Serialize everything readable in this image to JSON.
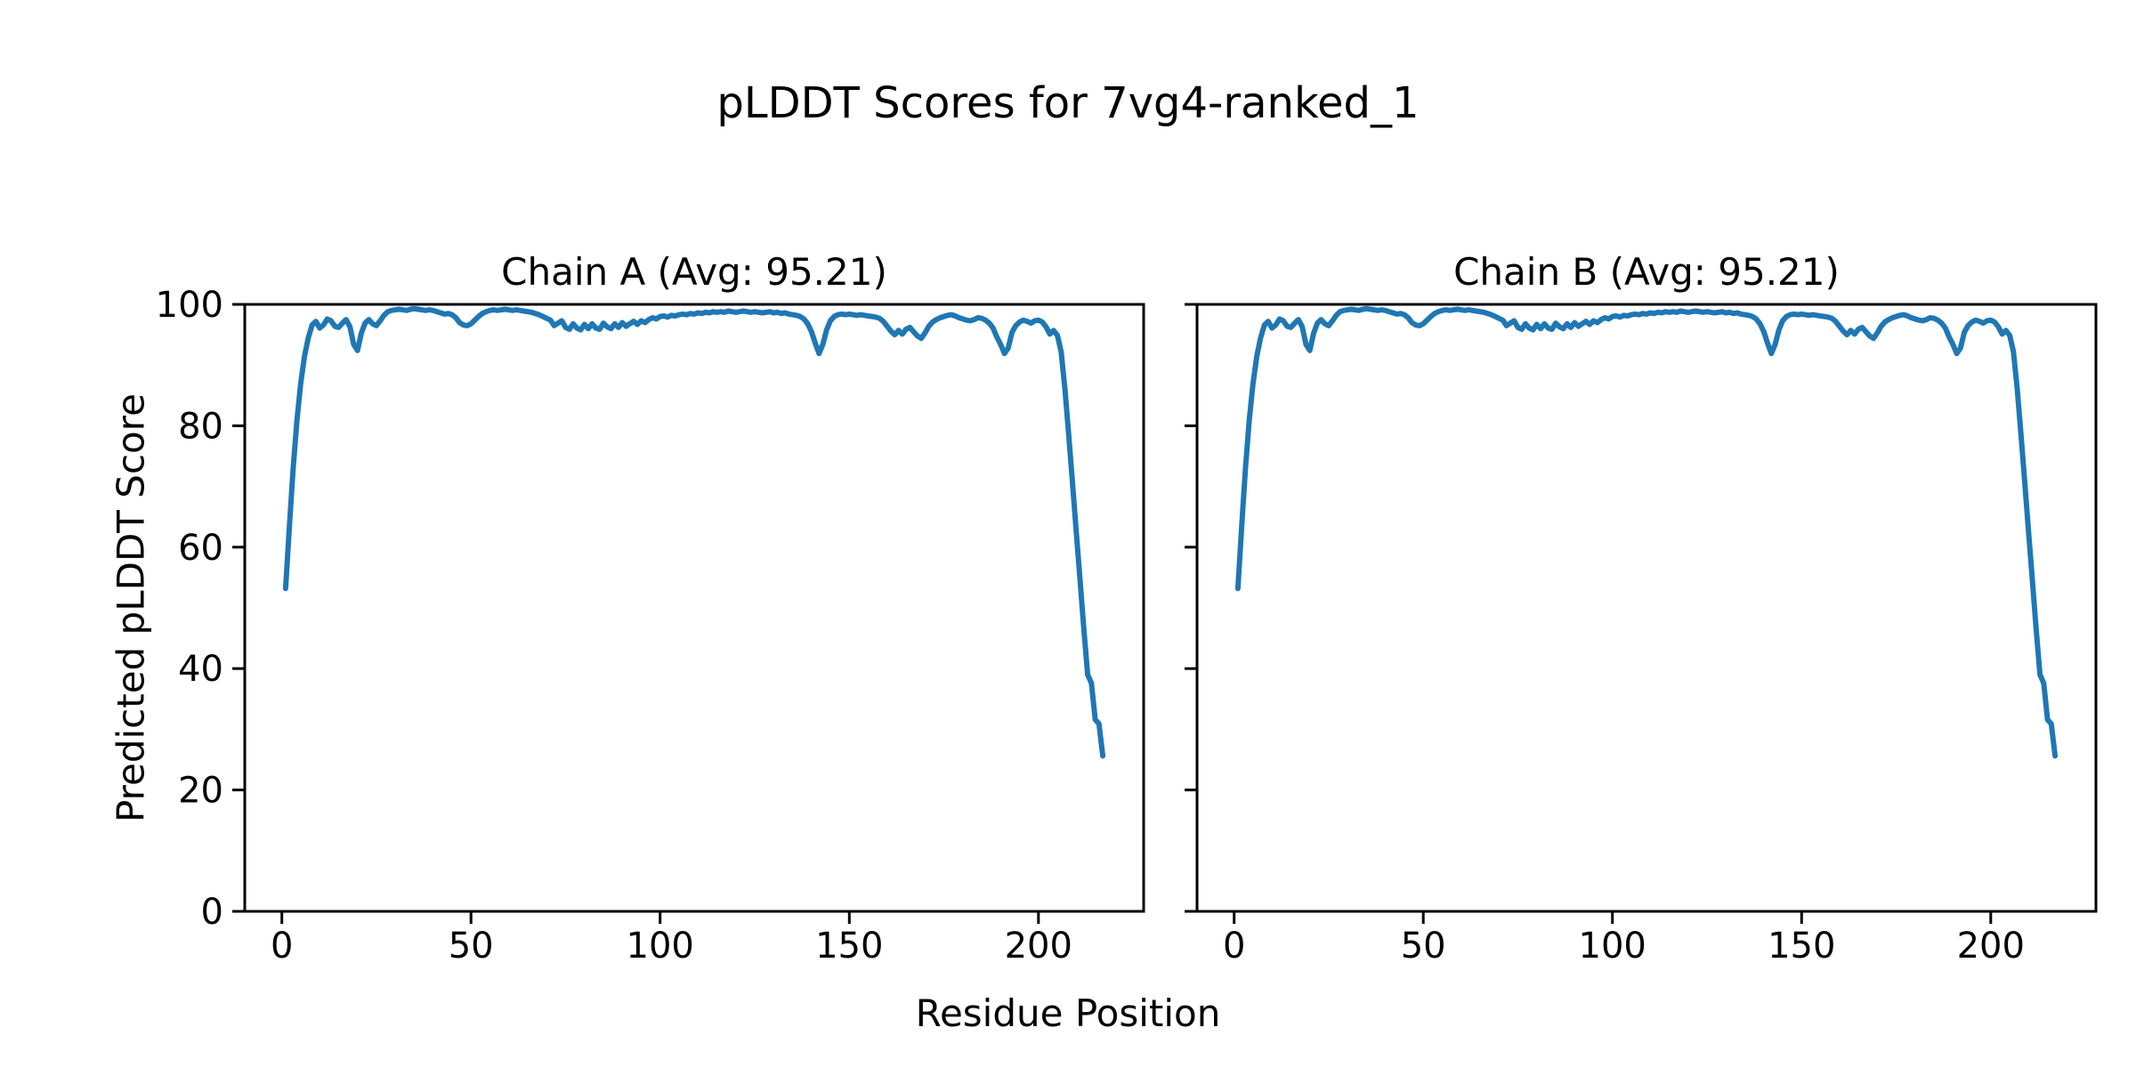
{
  "figure": {
    "suptitle": "pLDDT Scores for 7vg4-ranked_1",
    "xlabel": "Residue Position",
    "ylabel": "Predicted pLDDT Score"
  },
  "chart_data": {
    "type": "line",
    "title": "pLDDT Scores for 7vg4-ranked_1",
    "xlabel": "Residue Position",
    "ylabel": "Predicted pLDDT Score",
    "ylim": [
      0,
      100
    ],
    "xlim": [
      -9.8,
      227.8
    ],
    "xticks": [
      0,
      50,
      100,
      150,
      200
    ],
    "yticks": [
      0,
      20,
      40,
      60,
      80,
      100
    ],
    "grid": false,
    "legend_position": "none",
    "line_color": "#1f77b4",
    "axis_color": "#000000",
    "x_start": 1,
    "panels": [
      {
        "label": "Chain A (Avg: 95.21)",
        "chain": "A",
        "avg": 95.21,
        "values": [
          53.2,
          63.5,
          73,
          81,
          87,
          91.5,
          94.5,
          96.6,
          97.2,
          96.1,
          96.6,
          97.6,
          97.3,
          96.4,
          96.2,
          96.9,
          97.5,
          96.3,
          93.4,
          92.4,
          95.2,
          96.9,
          97.5,
          96.8,
          96.5,
          97.3,
          98.2,
          98.8,
          99,
          99.1,
          99.2,
          99.1,
          99,
          99.2,
          99.3,
          99.2,
          99.1,
          99,
          99.1,
          99,
          98.8,
          98.6,
          98.4,
          98.5,
          98.3,
          97.8,
          97,
          96.6,
          96.5,
          96.8,
          97.4,
          98,
          98.5,
          98.8,
          99,
          99.1,
          99,
          99.1,
          99.2,
          99.1,
          99,
          99.1,
          99,
          98.9,
          98.8,
          98.7,
          98.5,
          98.3,
          98,
          97.7,
          97.4,
          96.5,
          96.9,
          97.3,
          96.2,
          95.9,
          96.8,
          96.1,
          95.8,
          96.7,
          96,
          96.8,
          96.1,
          95.9,
          96.9,
          96.3,
          96,
          96.8,
          96.2,
          97,
          96.4,
          96.8,
          97.2,
          96.7,
          97.3,
          97,
          97.5,
          97.8,
          97.6,
          98,
          98.1,
          97.9,
          98.2,
          98.1,
          98.3,
          98.4,
          98.3,
          98.5,
          98.4,
          98.6,
          98.5,
          98.7,
          98.6,
          98.8,
          98.7,
          98.8,
          98.7,
          98.9,
          98.8,
          98.7,
          98.8,
          98.9,
          98.8,
          98.7,
          98.8,
          98.7,
          98.6,
          98.7,
          98.8,
          98.6,
          98.7,
          98.5,
          98.6,
          98.4,
          98.3,
          98.2,
          98,
          97.6,
          96.8,
          95.5,
          93.6,
          91.9,
          93.4,
          95.8,
          97.3,
          98,
          98.3,
          98.4,
          98.3,
          98.4,
          98.3,
          98.2,
          98.3,
          98.2,
          98.1,
          98,
          97.9,
          97.7,
          97.2,
          96.4,
          95.6,
          95,
          95.7,
          95.1,
          95.9,
          96.2,
          95.5,
          94.8,
          94.4,
          95.3,
          96.4,
          97.1,
          97.5,
          97.8,
          98,
          98.2,
          98.3,
          98.1,
          97.8,
          97.6,
          97.4,
          97.3,
          97.5,
          97.8,
          97.7,
          97.4,
          96.9,
          96.1,
          94.6,
          93.4,
          91.9,
          92.8,
          95.4,
          96.5,
          97.1,
          97.4,
          97.2,
          96.9,
          97.3,
          97.4,
          97.1,
          96.3,
          95.1,
          95.7,
          94.9,
          92.2,
          86,
          78.5,
          70.5,
          62.5,
          54.5,
          46.5,
          39,
          37.6,
          31.6,
          30.9,
          25.6
        ]
      },
      {
        "label": "Chain B (Avg: 95.21)",
        "chain": "B",
        "avg": 95.21,
        "values": [
          53.2,
          63.5,
          73,
          81,
          87,
          91.5,
          94.5,
          96.6,
          97.2,
          96.1,
          96.6,
          97.6,
          97.3,
          96.4,
          96.2,
          96.9,
          97.5,
          96.3,
          93.4,
          92.4,
          95.2,
          96.9,
          97.5,
          96.8,
          96.5,
          97.3,
          98.2,
          98.8,
          99,
          99.1,
          99.2,
          99.1,
          99,
          99.2,
          99.3,
          99.2,
          99.1,
          99,
          99.1,
          99,
          98.8,
          98.6,
          98.4,
          98.5,
          98.3,
          97.8,
          97,
          96.6,
          96.5,
          96.8,
          97.4,
          98,
          98.5,
          98.8,
          99,
          99.1,
          99,
          99.1,
          99.2,
          99.1,
          99,
          99.1,
          99,
          98.9,
          98.8,
          98.7,
          98.5,
          98.3,
          98,
          97.7,
          97.4,
          96.5,
          96.9,
          97.3,
          96.2,
          95.9,
          96.8,
          96.1,
          95.8,
          96.7,
          96,
          96.8,
          96.1,
          95.9,
          96.9,
          96.3,
          96,
          96.8,
          96.2,
          97,
          96.4,
          96.8,
          97.2,
          96.7,
          97.3,
          97,
          97.5,
          97.8,
          97.6,
          98,
          98.1,
          97.9,
          98.2,
          98.1,
          98.3,
          98.4,
          98.3,
          98.5,
          98.4,
          98.6,
          98.5,
          98.7,
          98.6,
          98.8,
          98.7,
          98.8,
          98.7,
          98.9,
          98.8,
          98.7,
          98.8,
          98.9,
          98.8,
          98.7,
          98.8,
          98.7,
          98.6,
          98.7,
          98.8,
          98.6,
          98.7,
          98.5,
          98.6,
          98.4,
          98.3,
          98.2,
          98,
          97.6,
          96.8,
          95.5,
          93.6,
          91.9,
          93.4,
          95.8,
          97.3,
          98,
          98.3,
          98.4,
          98.3,
          98.4,
          98.3,
          98.2,
          98.3,
          98.2,
          98.1,
          98,
          97.9,
          97.7,
          97.2,
          96.4,
          95.6,
          95,
          95.7,
          95.1,
          95.9,
          96.2,
          95.5,
          94.8,
          94.4,
          95.3,
          96.4,
          97.1,
          97.5,
          97.8,
          98,
          98.2,
          98.3,
          98.1,
          97.8,
          97.6,
          97.4,
          97.3,
          97.5,
          97.8,
          97.7,
          97.4,
          96.9,
          96.1,
          94.6,
          93.4,
          91.9,
          92.8,
          95.4,
          96.5,
          97.1,
          97.4,
          97.2,
          96.9,
          97.3,
          97.4,
          97.1,
          96.3,
          95.1,
          95.7,
          94.9,
          92.2,
          86,
          78.5,
          70.5,
          62.5,
          54.5,
          46.5,
          39,
          37.6,
          31.6,
          30.9,
          25.6
        ]
      }
    ]
  }
}
